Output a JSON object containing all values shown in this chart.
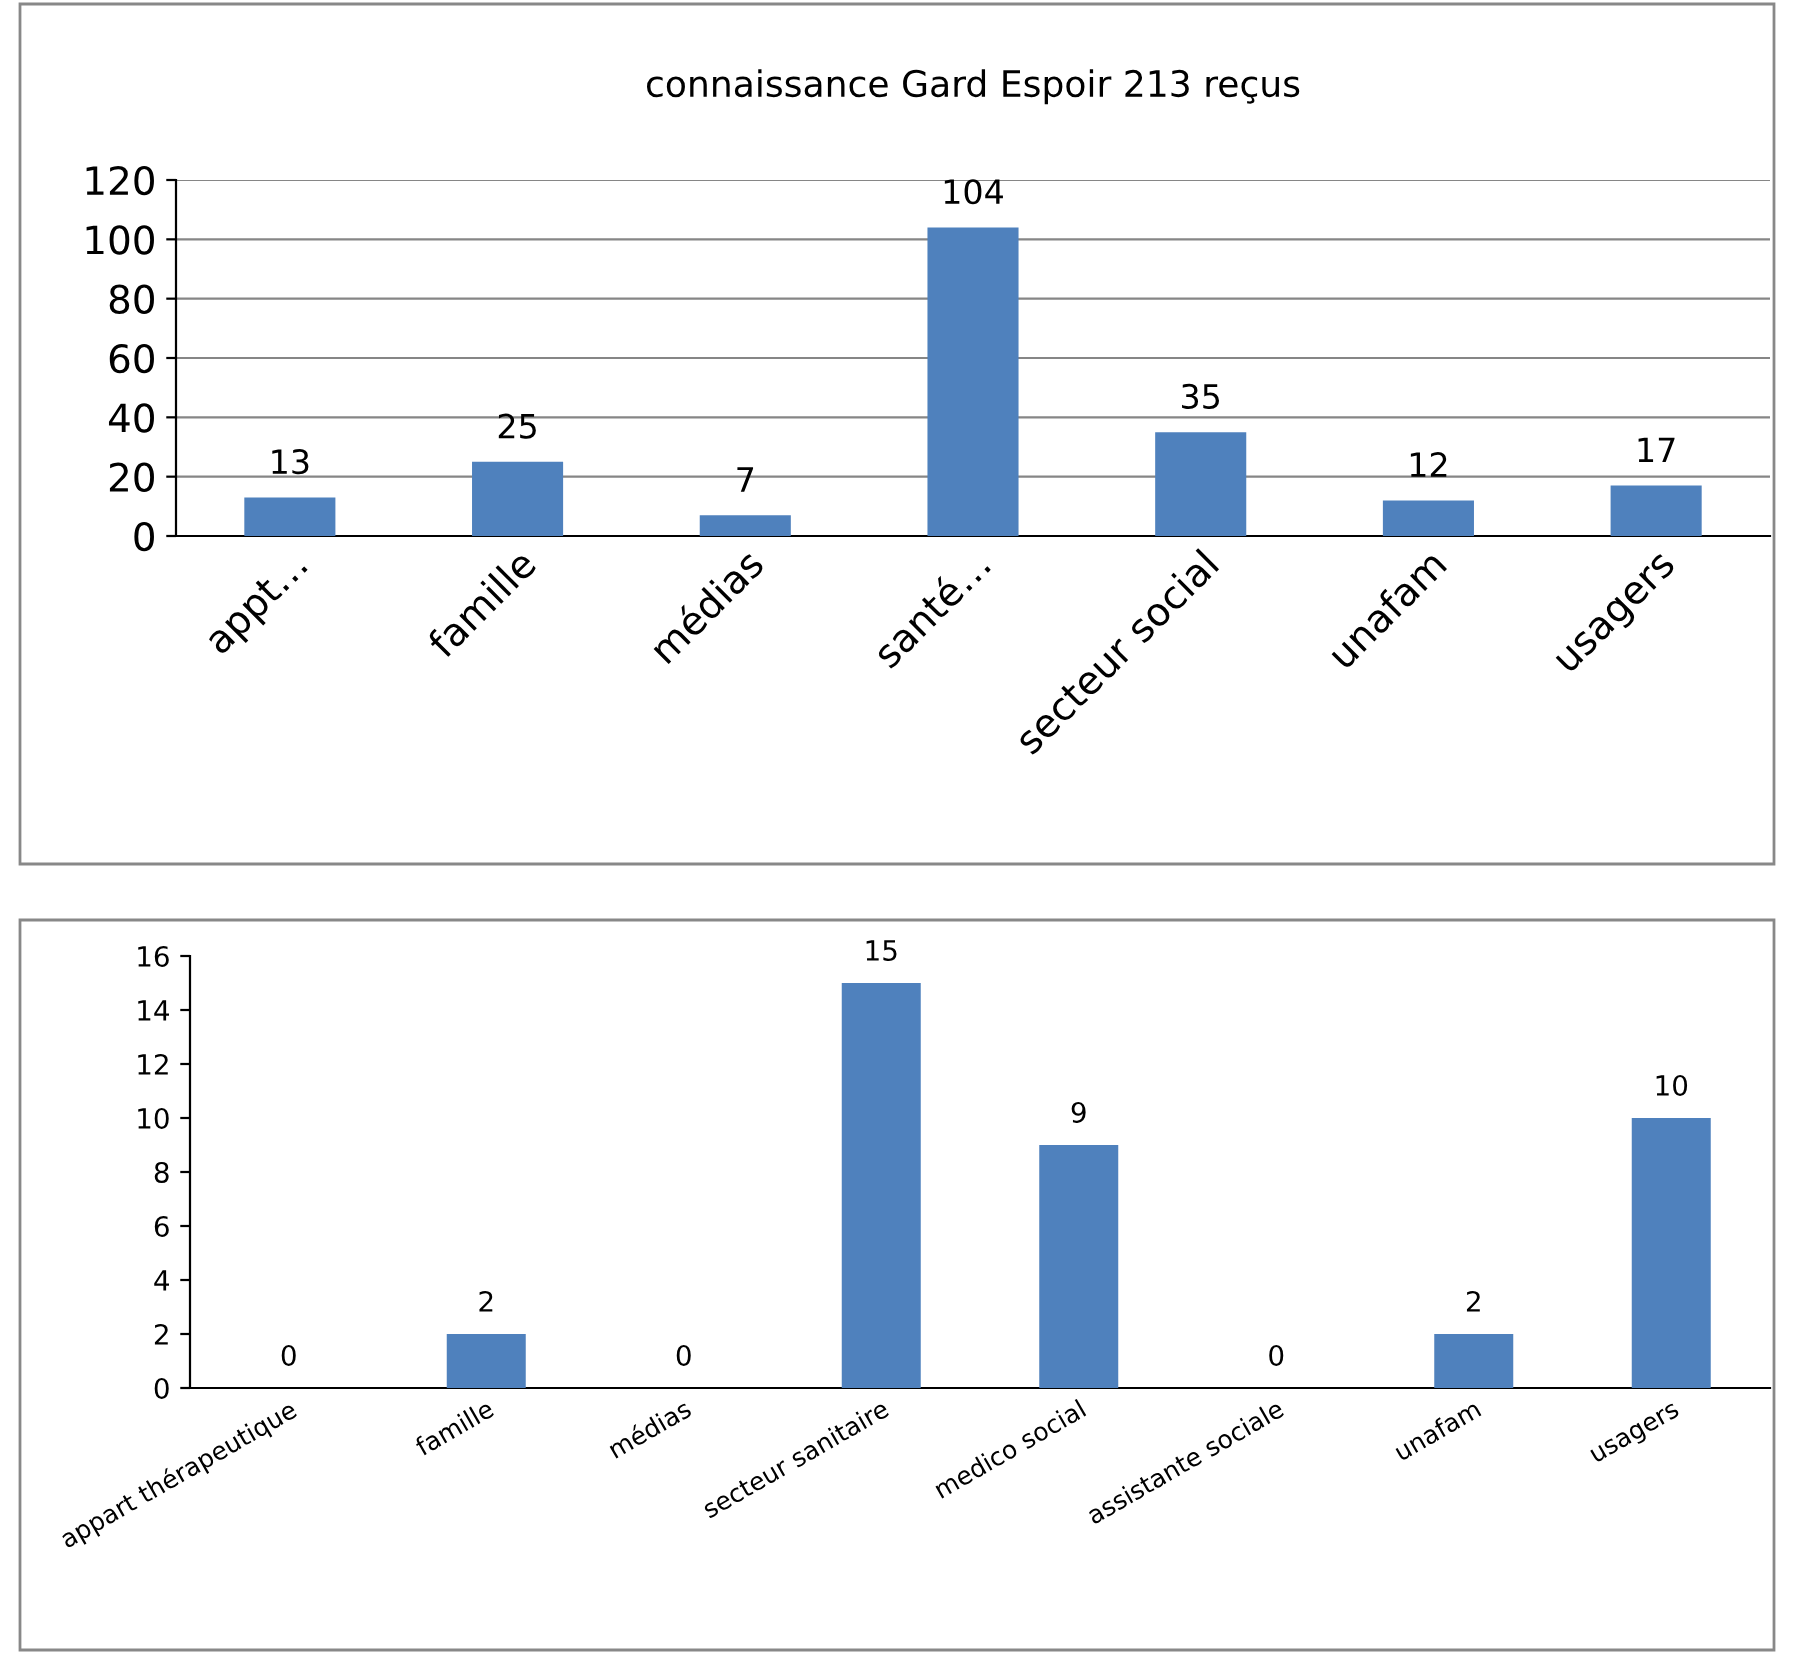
{
  "chart_data": [
    {
      "type": "bar",
      "title": "connaissance Gard Espoir 213 reçus",
      "categories": [
        "appt…",
        "famille",
        "médias",
        "santé…",
        "secteur social",
        "unafam",
        "usagers"
      ],
      "values": [
        13,
        25,
        7,
        104,
        35,
        12,
        17
      ],
      "color": "#4f81bd",
      "ylim": [
        0,
        120
      ],
      "yticks": [
        0,
        20,
        40,
        60,
        80,
        100,
        120
      ],
      "grid": "y",
      "data_labels": true
    },
    {
      "type": "bar",
      "categories": [
        "appart thérapeutique",
        "famille",
        "médias",
        "secteur sanitaire",
        "medico social",
        "assistante sociale",
        "unafam",
        "usagers"
      ],
      "values": [
        0,
        2,
        0,
        15,
        9,
        0,
        2,
        10
      ],
      "color": "#4f81bd",
      "ylim": [
        0,
        16
      ],
      "yticks": [
        0,
        2,
        4,
        6,
        8,
        10,
        12,
        14,
        16
      ],
      "data_labels": true
    }
  ]
}
